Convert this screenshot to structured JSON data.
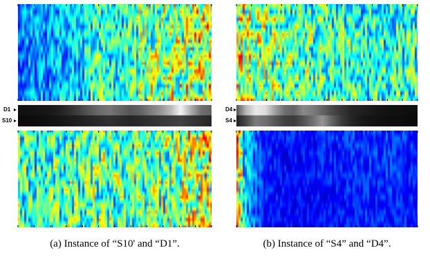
{
  "chart_data": [
    {
      "type": "heatmap",
      "panel": "a",
      "caption": "(a) Instance of “S10' and “D1”.",
      "strip_labels": [
        "D1",
        "S10"
      ],
      "colormap": "jet",
      "top_map_profile": [
        0.28,
        0.34,
        0.36,
        0.33,
        0.38,
        0.4,
        0.42,
        0.48,
        0.52,
        0.5,
        0.46,
        0.55,
        0.62,
        0.64,
        0.6,
        0.66,
        0.7,
        0.68,
        0.74,
        0.72
      ],
      "bottom_map_profile": [
        0.58,
        0.52,
        0.5,
        0.54,
        0.56,
        0.6,
        0.55,
        0.58,
        0.62,
        0.6,
        0.57,
        0.56,
        0.58,
        0.6,
        0.62,
        0.64,
        0.66,
        0.7,
        0.72,
        0.74
      ],
      "strip_row1_intensity": [
        0.05,
        0.05,
        0.06,
        0.07,
        0.1,
        0.15,
        0.22,
        0.3,
        0.38,
        0.42,
        0.36,
        0.3,
        0.34,
        0.45,
        0.55,
        0.7,
        0.95,
        0.65,
        0.4,
        0.35
      ],
      "strip_row2_intensity": [
        0.03,
        0.03,
        0.04,
        0.05,
        0.06,
        0.08,
        0.1,
        0.12,
        0.14,
        0.16,
        0.14,
        0.12,
        0.14,
        0.16,
        0.18,
        0.2,
        0.22,
        0.18,
        0.15,
        0.12
      ]
    },
    {
      "type": "heatmap",
      "panel": "b",
      "caption": "(b) Instance of “S4” and “D4”.",
      "strip_labels": [
        "D4",
        "S4"
      ],
      "colormap": "jet",
      "top_map_profile": [
        0.72,
        0.7,
        0.66,
        0.64,
        0.62,
        0.6,
        0.58,
        0.58,
        0.56,
        0.56,
        0.54,
        0.54,
        0.54,
        0.52,
        0.5,
        0.5,
        0.5,
        0.52,
        0.54,
        0.52
      ],
      "bottom_map_profile": [
        0.92,
        0.45,
        0.3,
        0.22,
        0.2,
        0.18,
        0.18,
        0.17,
        0.18,
        0.19,
        0.2,
        0.2,
        0.21,
        0.21,
        0.22,
        0.22,
        0.22,
        0.22,
        0.21,
        0.2
      ],
      "strip_row1_intensity": [
        0.3,
        0.7,
        0.9,
        0.85,
        0.6,
        0.4,
        0.35,
        0.5,
        0.45,
        0.35,
        0.25,
        0.18,
        0.12,
        0.1,
        0.08,
        0.06,
        0.05,
        0.05,
        0.04,
        0.04
      ],
      "strip_row2_intensity": [
        0.1,
        0.25,
        0.45,
        0.4,
        0.3,
        0.22,
        0.2,
        0.28,
        0.4,
        0.55,
        0.35,
        0.2,
        0.12,
        0.08,
        0.06,
        0.05,
        0.04,
        0.04,
        0.03,
        0.03
      ]
    }
  ]
}
